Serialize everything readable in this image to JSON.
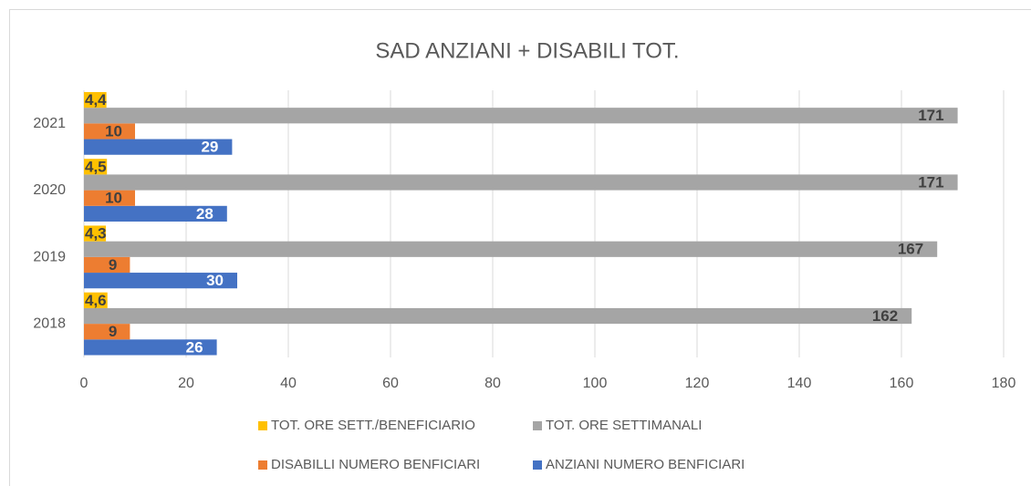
{
  "chart_data": {
    "type": "hbar",
    "title": "SAD ANZIANI + DISABILI TOT.",
    "categories": [
      "2018",
      "2019",
      "2020",
      "2021"
    ],
    "series": [
      {
        "name": "ANZIANI NUMERO BENFICIARI",
        "color": "#4472c4",
        "values": [
          26,
          30,
          28,
          29
        ]
      },
      {
        "name": "DISABILLI NUMERO BENFICIARI",
        "color": "#ed7d31",
        "values": [
          9,
          9,
          10,
          10
        ]
      },
      {
        "name": "TOT. ORE SETTIMANALI",
        "color": "#a5a5a5",
        "values": [
          162,
          167,
          171,
          171
        ]
      },
      {
        "name": "TOT. ORE SETT./BENEFICIARIO",
        "color": "#ffc000",
        "values": [
          4.6,
          4.3,
          4.5,
          4.4
        ],
        "value_labels": [
          "4,6",
          "4,3",
          "4,5",
          "4,4"
        ]
      }
    ],
    "xlim": [
      0,
      180
    ],
    "xticks": [
      0,
      20,
      40,
      60,
      80,
      100,
      120,
      140,
      160,
      180
    ],
    "grid": true
  }
}
